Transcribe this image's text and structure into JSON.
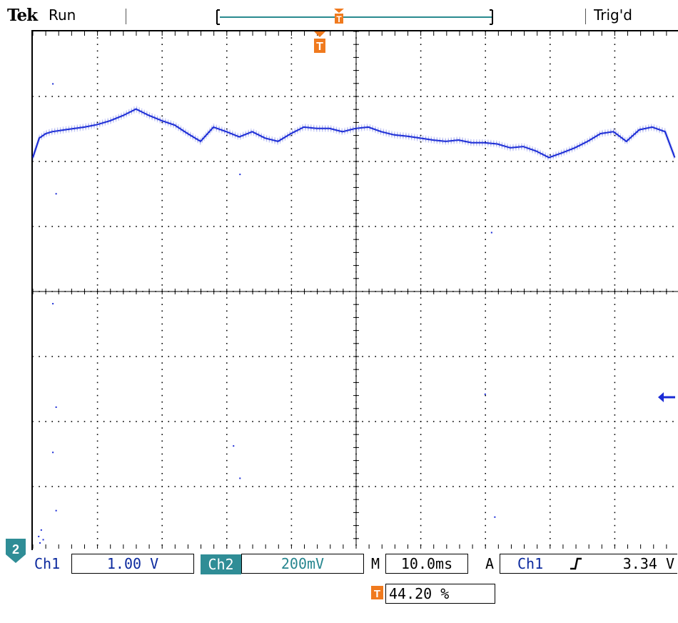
{
  "header": {
    "brand": "Tek",
    "acq_state": "Run",
    "trigger_state": "Trig'd"
  },
  "screen": {
    "grid": {
      "divisions_x": 10,
      "divisions_y": 8,
      "subdivisions": 5
    },
    "trigger_marker_label": "T",
    "channel_marker_label": "2",
    "colors": {
      "trace": "#1a2bd6",
      "trigger": "#f07a1e",
      "ch2": "#2f8d96",
      "ch1": "#0c2a9e",
      "record_bar": "#2a8a8f"
    }
  },
  "readout": {
    "ch1_label": "Ch1",
    "ch1_scale": "1.00 V",
    "ch2_label": "Ch2",
    "ch2_scale": "200mV",
    "timebase_prefix": "M",
    "timebase": "10.0ms",
    "trigger_mode": "A",
    "trigger_source": "Ch1",
    "trigger_slope_icon": "rising-edge-icon",
    "trigger_level": "3.34 V"
  },
  "trigger_position": {
    "icon_label": "T",
    "value": "44.20 %"
  },
  "chart_data": {
    "type": "line",
    "xlim": [
      0,
      10
    ],
    "ylim": [
      -4,
      4
    ],
    "grid": true,
    "series": [
      {
        "x": [
          0,
          0.1,
          0.2,
          0.3,
          0.5,
          0.8,
          1.0,
          1.2,
          1.4,
          1.6,
          1.8,
          2.0,
          2.2,
          2.4,
          2.6,
          2.8,
          3.0,
          3.2,
          3.4,
          3.6,
          3.8,
          4.0,
          4.2,
          4.4,
          4.6,
          4.8,
          5.0,
          5.2,
          5.4,
          5.6,
          5.8,
          6.0,
          6.2,
          6.4,
          6.6,
          6.8,
          7.0,
          7.2,
          7.4,
          7.6,
          7.8,
          8.0,
          8.2,
          8.4,
          8.6,
          8.8,
          9.0,
          9.2,
          9.4,
          9.6,
          9.8,
          9.95
        ],
        "y": [
          2.05,
          2.35,
          2.42,
          2.45,
          2.48,
          2.52,
          2.56,
          2.62,
          2.7,
          2.8,
          2.7,
          2.62,
          2.55,
          2.42,
          2.3,
          2.52,
          2.45,
          2.37,
          2.45,
          2.35,
          2.3,
          2.42,
          2.52,
          2.5,
          2.5,
          2.45,
          2.5,
          2.52,
          2.45,
          2.4,
          2.38,
          2.35,
          2.32,
          2.3,
          2.32,
          2.28,
          2.28,
          2.26,
          2.2,
          2.22,
          2.15,
          2.05,
          2.12,
          2.2,
          2.3,
          2.42,
          2.45,
          2.3,
          2.48,
          2.52,
          2.45,
          2.05
        ]
      }
    ]
  }
}
